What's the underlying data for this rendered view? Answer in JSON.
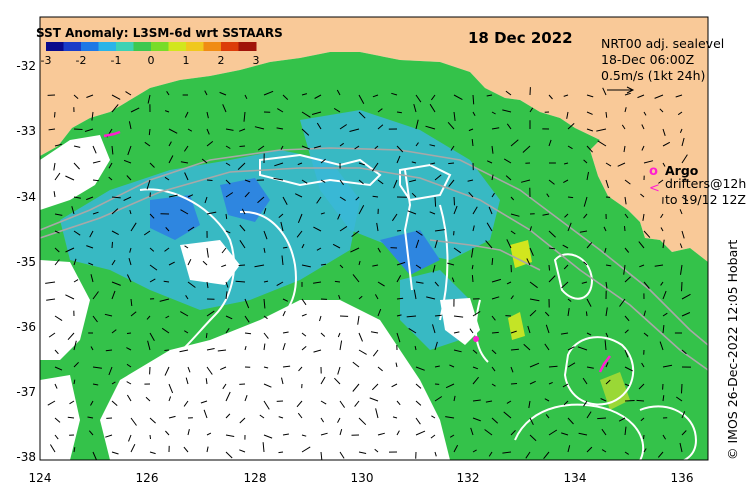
{
  "header": {
    "title": "SST Anomaly: L3SM-6d wrt SSTAARS",
    "date": "18 Dec 2022"
  },
  "colorbar": {
    "ticks": [
      "-3",
      "-2",
      "-1",
      "0",
      "1",
      "2",
      "3"
    ],
    "colors": [
      "#0a0a8c",
      "#1a3cc8",
      "#1e78e6",
      "#2ab4e8",
      "#3cd2b4",
      "#3cc850",
      "#78dc28",
      "#d2e61e",
      "#f0c81e",
      "#f08c14",
      "#dc3c0a",
      "#a0140a"
    ]
  },
  "legend": {
    "product": "NRT00 adj. sealevel",
    "time": "18-Dec 06:00Z",
    "scale": "0.5m/s (1kt 24h)",
    "argo_symbol": "o",
    "argo_label": "Argo",
    "drifter_symbol": "<",
    "drifter_label_1": "drifters@12h",
    "drifter_label_2": "to 19/12 12Z"
  },
  "axes": {
    "y_ticks": [
      "-32",
      "-33",
      "-34",
      "-35",
      "-36",
      "-37",
      "-38"
    ],
    "x_ticks": [
      "124",
      "126",
      "128",
      "130",
      "132",
      "134",
      "136"
    ]
  },
  "credit": "© IMOS 26-Dec-2022 12:05 Hobart",
  "colors": {
    "land": "#f9c998",
    "sea_green": "#34c24a",
    "sea_cyan": "#3ab7d8",
    "sea_blue": "#2e86e0",
    "contour": "#ffffff",
    "track": "#a8a8a8",
    "argo": "#ff1fd0"
  }
}
